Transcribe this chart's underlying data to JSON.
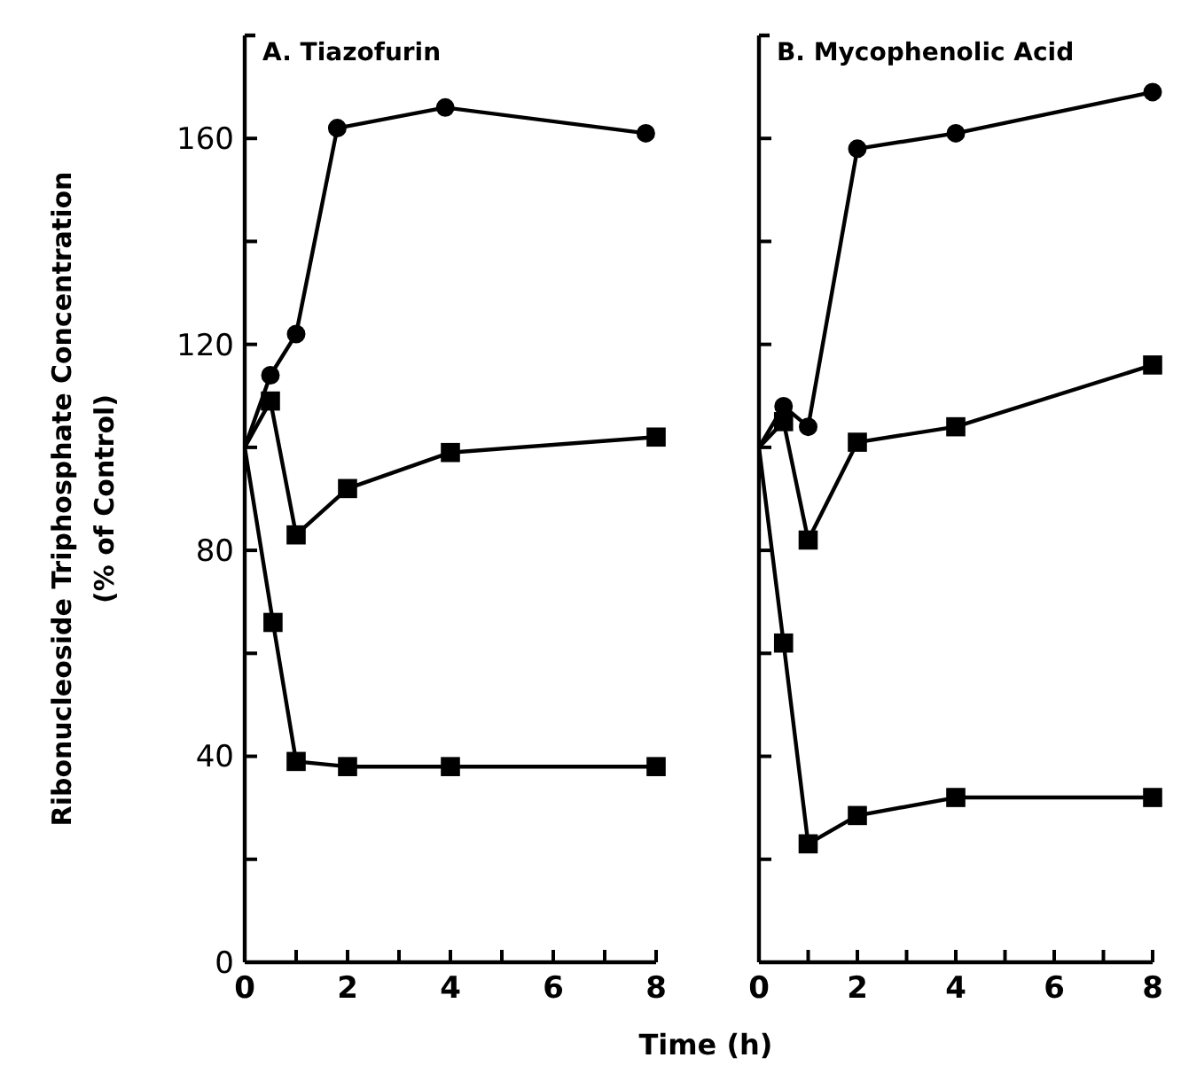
{
  "chart_data": [
    {
      "type": "line",
      "title": "A. Tiazofurin",
      "ylabel": "Ribonucleoside Triphosphate Concentration\n(% of Control)",
      "xlabel": "Time (h)",
      "xlim": [
        0,
        8
      ],
      "ylim": [
        0,
        180
      ],
      "xticks": [
        0,
        {
          "value": 1,
          "label": null
        },
        2,
        {
          "value": 3,
          "label": null
        },
        4,
        {
          "value": 5,
          "label": null
        },
        6,
        {
          "value": 7,
          "label": null
        },
        8
      ],
      "yticks": [
        0,
        {
          "value": 20,
          "label": null
        },
        40,
        {
          "value": 60,
          "label": null
        },
        80,
        {
          "value": 100,
          "label": null
        },
        120,
        {
          "value": 140,
          "label": null
        },
        160
      ],
      "grid": false,
      "legend": false,
      "line_style": "solid",
      "series": [
        {
          "color": "#000000",
          "marker": "circle",
          "x": [
            0,
            0.5,
            1,
            1.8,
            3.9,
            7.8
          ],
          "values": [
            100,
            114,
            122,
            162,
            166,
            161
          ]
        },
        {
          "color": "#000000",
          "marker": "square",
          "x": [
            0,
            0.5,
            1,
            2,
            4,
            8
          ],
          "values": [
            100,
            109,
            83,
            92,
            99,
            102
          ]
        },
        {
          "color": "#000000",
          "marker": "square",
          "x": [
            0,
            0.55,
            1,
            2,
            4,
            8
          ],
          "values": [
            100,
            66,
            39,
            38,
            38,
            38
          ]
        }
      ]
    },
    {
      "type": "line",
      "title": "B. Mycophenolic Acid",
      "xlim": [
        0,
        8
      ],
      "ylim": [
        0,
        180
      ],
      "tick_labels": "x",
      "xticks": [
        0,
        {
          "value": 1,
          "label": null
        },
        2,
        {
          "value": 3,
          "label": null
        },
        4,
        {
          "value": 5,
          "label": null
        },
        6,
        {
          "value": 7,
          "label": null
        },
        8
      ],
      "yticks": [
        0,
        {
          "value": 20,
          "label": null
        },
        40,
        {
          "value": 60,
          "label": null
        },
        80,
        {
          "value": 100,
          "label": null
        },
        120,
        {
          "value": 140,
          "label": null
        },
        160
      ],
      "grid": false,
      "legend": false,
      "line_style": "solid",
      "series": [
        {
          "color": "#000000",
          "marker": "circle",
          "x": [
            0,
            0.5,
            1,
            2,
            4,
            8
          ],
          "values": [
            100,
            108,
            104,
            158,
            161,
            169
          ]
        },
        {
          "color": "#000000",
          "marker": "square",
          "x": [
            0,
            0.5,
            1,
            2,
            4,
            8
          ],
          "values": [
            100,
            105,
            82,
            101,
            104,
            116
          ]
        },
        {
          "color": "#000000",
          "marker": "square",
          "x": [
            0,
            0.5,
            1,
            2,
            4,
            8
          ],
          "values": [
            100,
            62,
            23,
            28.5,
            32,
            32
          ]
        }
      ]
    }
  ]
}
